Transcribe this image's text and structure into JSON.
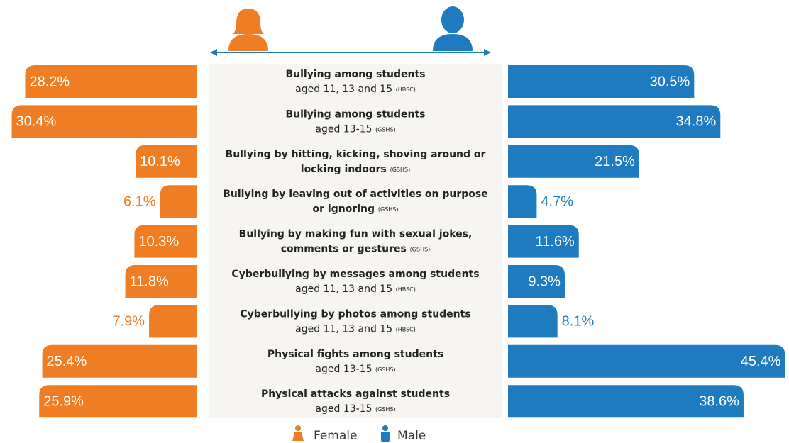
{
  "chart_data": {
    "type": "butterfly",
    "categories": [
      {
        "line1": "Bullying among students",
        "line2": "aged 11, 13 and 15",
        "source": "(HBSC)",
        "line2_bold": false
      },
      {
        "line1": "Bullying among students",
        "line2": "aged 13-15",
        "source": "(GSHS)",
        "line2_bold": false
      },
      {
        "line1": "Bullying by hitting, kicking, shoving around or",
        "line2": "locking indoors",
        "source": "(GSHS)",
        "line2_bold": true
      },
      {
        "line1": "Bullying by leaving out of activities on purpose",
        "line2": "or ignoring",
        "source": "(GSHS)",
        "line2_bold": true
      },
      {
        "line1": "Bullying by making fun with sexual jokes,",
        "line2": "comments or gestures",
        "source": "(GSHS)",
        "line2_bold": true
      },
      {
        "line1": "Cyberbullying by messages among students",
        "line2": "aged 11, 13 and 15",
        "source": "(HBSC)",
        "line2_bold": false
      },
      {
        "line1": "Cyberbullying by photos among students",
        "line2": "aged 11, 13 and 15",
        "source": "(HBSC)",
        "line2_bold": false
      },
      {
        "line1": "Physical fights among students",
        "line2": "aged 13-15",
        "source": "(GSHS)",
        "line2_bold": false
      },
      {
        "line1": "Physical attacks against students",
        "line2": "aged 13-15",
        "source": "(GSHS)",
        "line2_bold": false
      }
    ],
    "series": [
      {
        "name": "Female",
        "color": "#ee7d24",
        "side": "left",
        "values": [
          28.2,
          30.4,
          10.1,
          6.1,
          10.3,
          11.8,
          7.9,
          25.4,
          25.9
        ],
        "value_labels": [
          "28.2%",
          "30.4%",
          "10.1%",
          "6.1%",
          "10.3%",
          "11.8%",
          "7.9%",
          "25.4%",
          "25.9%"
        ]
      },
      {
        "name": "Male",
        "color": "#1f7bbf",
        "side": "right",
        "values": [
          30.5,
          34.8,
          21.5,
          4.7,
          11.6,
          9.3,
          8.1,
          45.4,
          38.6
        ],
        "value_labels": [
          "30.5%",
          "34.8%",
          "21.5%",
          "4.7%",
          "11.6%",
          "9.3%",
          "8.1%",
          "45.4%",
          "38.6%"
        ]
      }
    ]
  }
}
